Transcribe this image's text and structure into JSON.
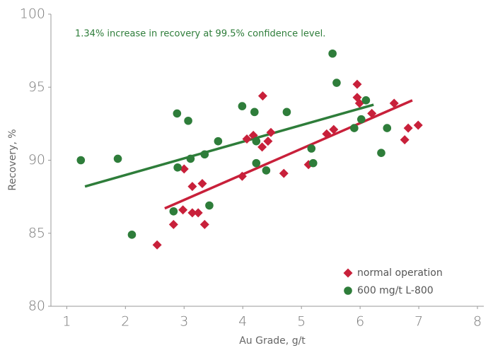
{
  "chart_data": {
    "type": "scatter",
    "annotation": "1.34% increase in recovery at 99.5% confidence level.",
    "annotation_color": "#2e7d3a",
    "x_label": "Au Grade, g/t",
    "y_label": "Recovery, %",
    "xlim": [
      0.73,
      8
    ],
    "ylim": [
      80,
      100
    ],
    "xticks": [
      1,
      2,
      3,
      4,
      5,
      6,
      7,
      8
    ],
    "yticks": [
      80,
      85,
      90,
      95,
      100
    ],
    "grid": false,
    "legend": "lower right",
    "series": [
      {
        "name": "normal operation",
        "color": "#c8203a",
        "marker": "diamond",
        "x": [
          2.54,
          2.82,
          2.98,
          3.0,
          3.14,
          3.14,
          3.24,
          3.31,
          3.35,
          3.99,
          4.07,
          4.18,
          4.33,
          4.34,
          4.43,
          4.48,
          4.7,
          5.12,
          5.43,
          5.55,
          5.95,
          5.95,
          5.99,
          6.2,
          6.58,
          6.76,
          6.82,
          6.99
        ],
        "y": [
          84.2,
          85.6,
          86.6,
          89.4,
          88.2,
          86.4,
          86.4,
          88.4,
          85.6,
          88.9,
          91.45,
          91.7,
          90.9,
          94.4,
          91.3,
          91.9,
          89.1,
          89.7,
          91.8,
          92.1,
          95.2,
          94.3,
          93.9,
          93.2,
          93.9,
          91.4,
          92.2,
          92.4
        ],
        "trend_x": [
          2.67,
          6.89
        ],
        "trend_y": [
          86.7,
          94.1
        ]
      },
      {
        "name": "600 mg/t L-800",
        "color": "#2e7d3a",
        "marker": "circle",
        "x": [
          1.24,
          1.87,
          2.11,
          2.82,
          2.88,
          2.89,
          3.07,
          3.11,
          3.35,
          3.43,
          3.58,
          3.99,
          4.2,
          4.23,
          4.23,
          4.4,
          4.75,
          5.17,
          5.2,
          5.53,
          5.6,
          5.9,
          6.02,
          6.1,
          6.36,
          6.46
        ],
        "y": [
          90.0,
          90.1,
          84.9,
          86.5,
          93.2,
          89.5,
          92.7,
          90.1,
          90.4,
          86.9,
          91.3,
          93.7,
          93.3,
          89.8,
          91.3,
          89.3,
          93.3,
          90.8,
          89.8,
          97.3,
          95.3,
          92.2,
          92.8,
          94.1,
          90.5,
          92.2
        ],
        "trend_x": [
          1.31,
          6.23
        ],
        "trend_y": [
          88.2,
          93.8
        ]
      }
    ]
  }
}
